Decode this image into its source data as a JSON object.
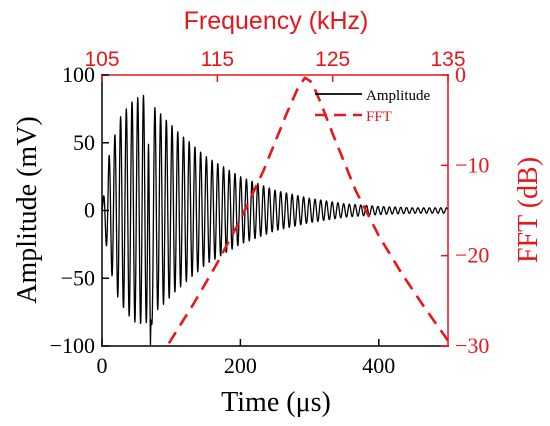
{
  "chart_data": {
    "type": "line",
    "axes": {
      "bottom": {
        "label": "Time (μs)",
        "range": [
          0,
          500
        ],
        "ticks": [
          0,
          200,
          400
        ],
        "tick_labels": [
          "0",
          "200",
          "400"
        ],
        "color": "#000000"
      },
      "left": {
        "label": "Amplitude (mV)",
        "range": [
          -100,
          100
        ],
        "ticks": [
          -100,
          -50,
          0,
          50,
          100
        ],
        "tick_labels": [
          "−100",
          "−50",
          "0",
          "50",
          "100"
        ],
        "color": "#000000"
      },
      "top": {
        "label": "Frequency (kHz)",
        "range": [
          105,
          135
        ],
        "ticks": [
          105,
          115,
          125,
          135
        ],
        "tick_labels": [
          "105",
          "115",
          "125",
          "135"
        ],
        "color": "#e8161b"
      },
      "right": {
        "label": "FFT (dB)",
        "range": [
          -30,
          0
        ],
        "ticks": [
          -30,
          -20,
          -10,
          0
        ],
        "tick_labels": [
          "−30",
          "−20",
          "−10",
          "0"
        ],
        "color": "#e8161b"
      }
    },
    "series": [
      {
        "name": "Amplitude",
        "axes": [
          "bottom",
          "left"
        ],
        "color": "#000000",
        "style": "solid",
        "kind": "damped-oscillation",
        "x_range": [
          0,
          500
        ],
        "carrier_frequency_khz": 121,
        "envelope": [
          [
            0,
            2
          ],
          [
            10,
            40
          ],
          [
            25,
            68
          ],
          [
            45,
            82
          ],
          [
            60,
            85
          ],
          [
            80,
            74
          ],
          [
            110,
            58
          ],
          [
            150,
            40
          ],
          [
            200,
            25
          ],
          [
            250,
            15
          ],
          [
            300,
            9
          ],
          [
            350,
            5
          ],
          [
            400,
            3
          ],
          [
            450,
            2
          ],
          [
            500,
            2
          ]
        ],
        "trough_peak": [
          70,
          -100
        ]
      },
      {
        "name": "FFT",
        "axes": [
          "top",
          "right"
        ],
        "color": "#e8161b",
        "style": "dashed",
        "x": [
          110.8,
          113,
          115,
          117,
          119,
          121,
          122,
          122.6,
          123.2,
          124,
          125,
          127,
          129,
          131,
          133,
          135
        ],
        "y": [
          -29.7,
          -25.2,
          -20.8,
          -16,
          -10.6,
          -4.3,
          -1.4,
          -0.3,
          -0.8,
          -3.2,
          -6.5,
          -12.8,
          -17.8,
          -22,
          -25.8,
          -29.4
        ]
      }
    ],
    "legend": {
      "position": "top-right",
      "entries": [
        {
          "label": "Amplitude",
          "color": "#000000",
          "style": "solid"
        },
        {
          "label": "FFT",
          "color": "#e8161b",
          "style": "dashed"
        }
      ]
    },
    "grid": false
  }
}
